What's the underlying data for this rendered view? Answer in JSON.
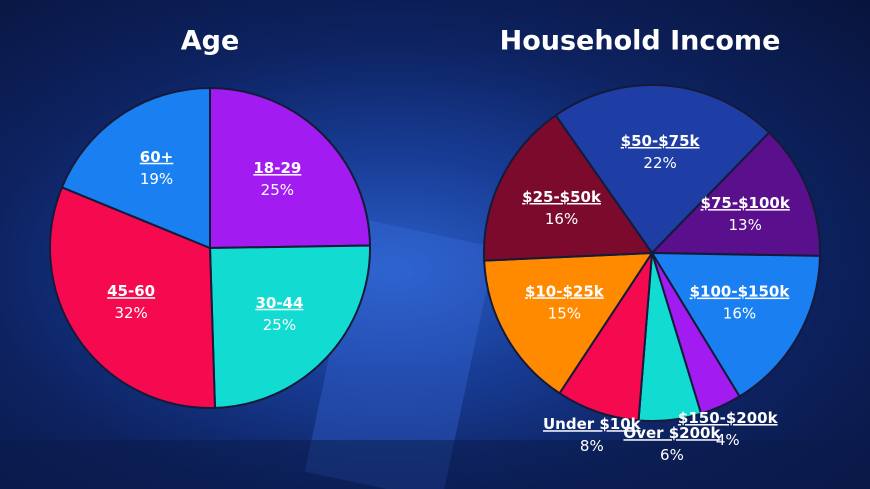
{
  "chart_data": [
    {
      "type": "pie",
      "title": "Age",
      "categories": [
        "18-29",
        "30-44",
        "45-60",
        "60+"
      ],
      "values": [
        25,
        25,
        32,
        19
      ],
      "value_labels": [
        "25%",
        "25%",
        "32%",
        "19%"
      ],
      "colors": [
        "#a21cf2",
        "#12dcd2",
        "#f5094f",
        "#1a80f2"
      ]
    },
    {
      "type": "pie",
      "title": "Household Income",
      "categories": [
        "$50-$75k",
        "$75-$100k",
        "$100-$150k",
        "$150-$200k",
        "Over $200k",
        "Under $10k",
        "$10-$25k",
        "$25-$50k"
      ],
      "values": [
        22,
        13,
        16,
        4,
        6,
        8,
        15,
        16
      ],
      "value_labels": [
        "22%",
        "13%",
        "16%",
        "4%",
        "6%",
        "8%",
        "15%",
        "16%"
      ],
      "colors": [
        "#1e3ea6",
        "#5a108c",
        "#1a80f2",
        "#a21cf2",
        "#12dcd2",
        "#f5094f",
        "#ff8a00",
        "#7c0a2c"
      ]
    }
  ]
}
